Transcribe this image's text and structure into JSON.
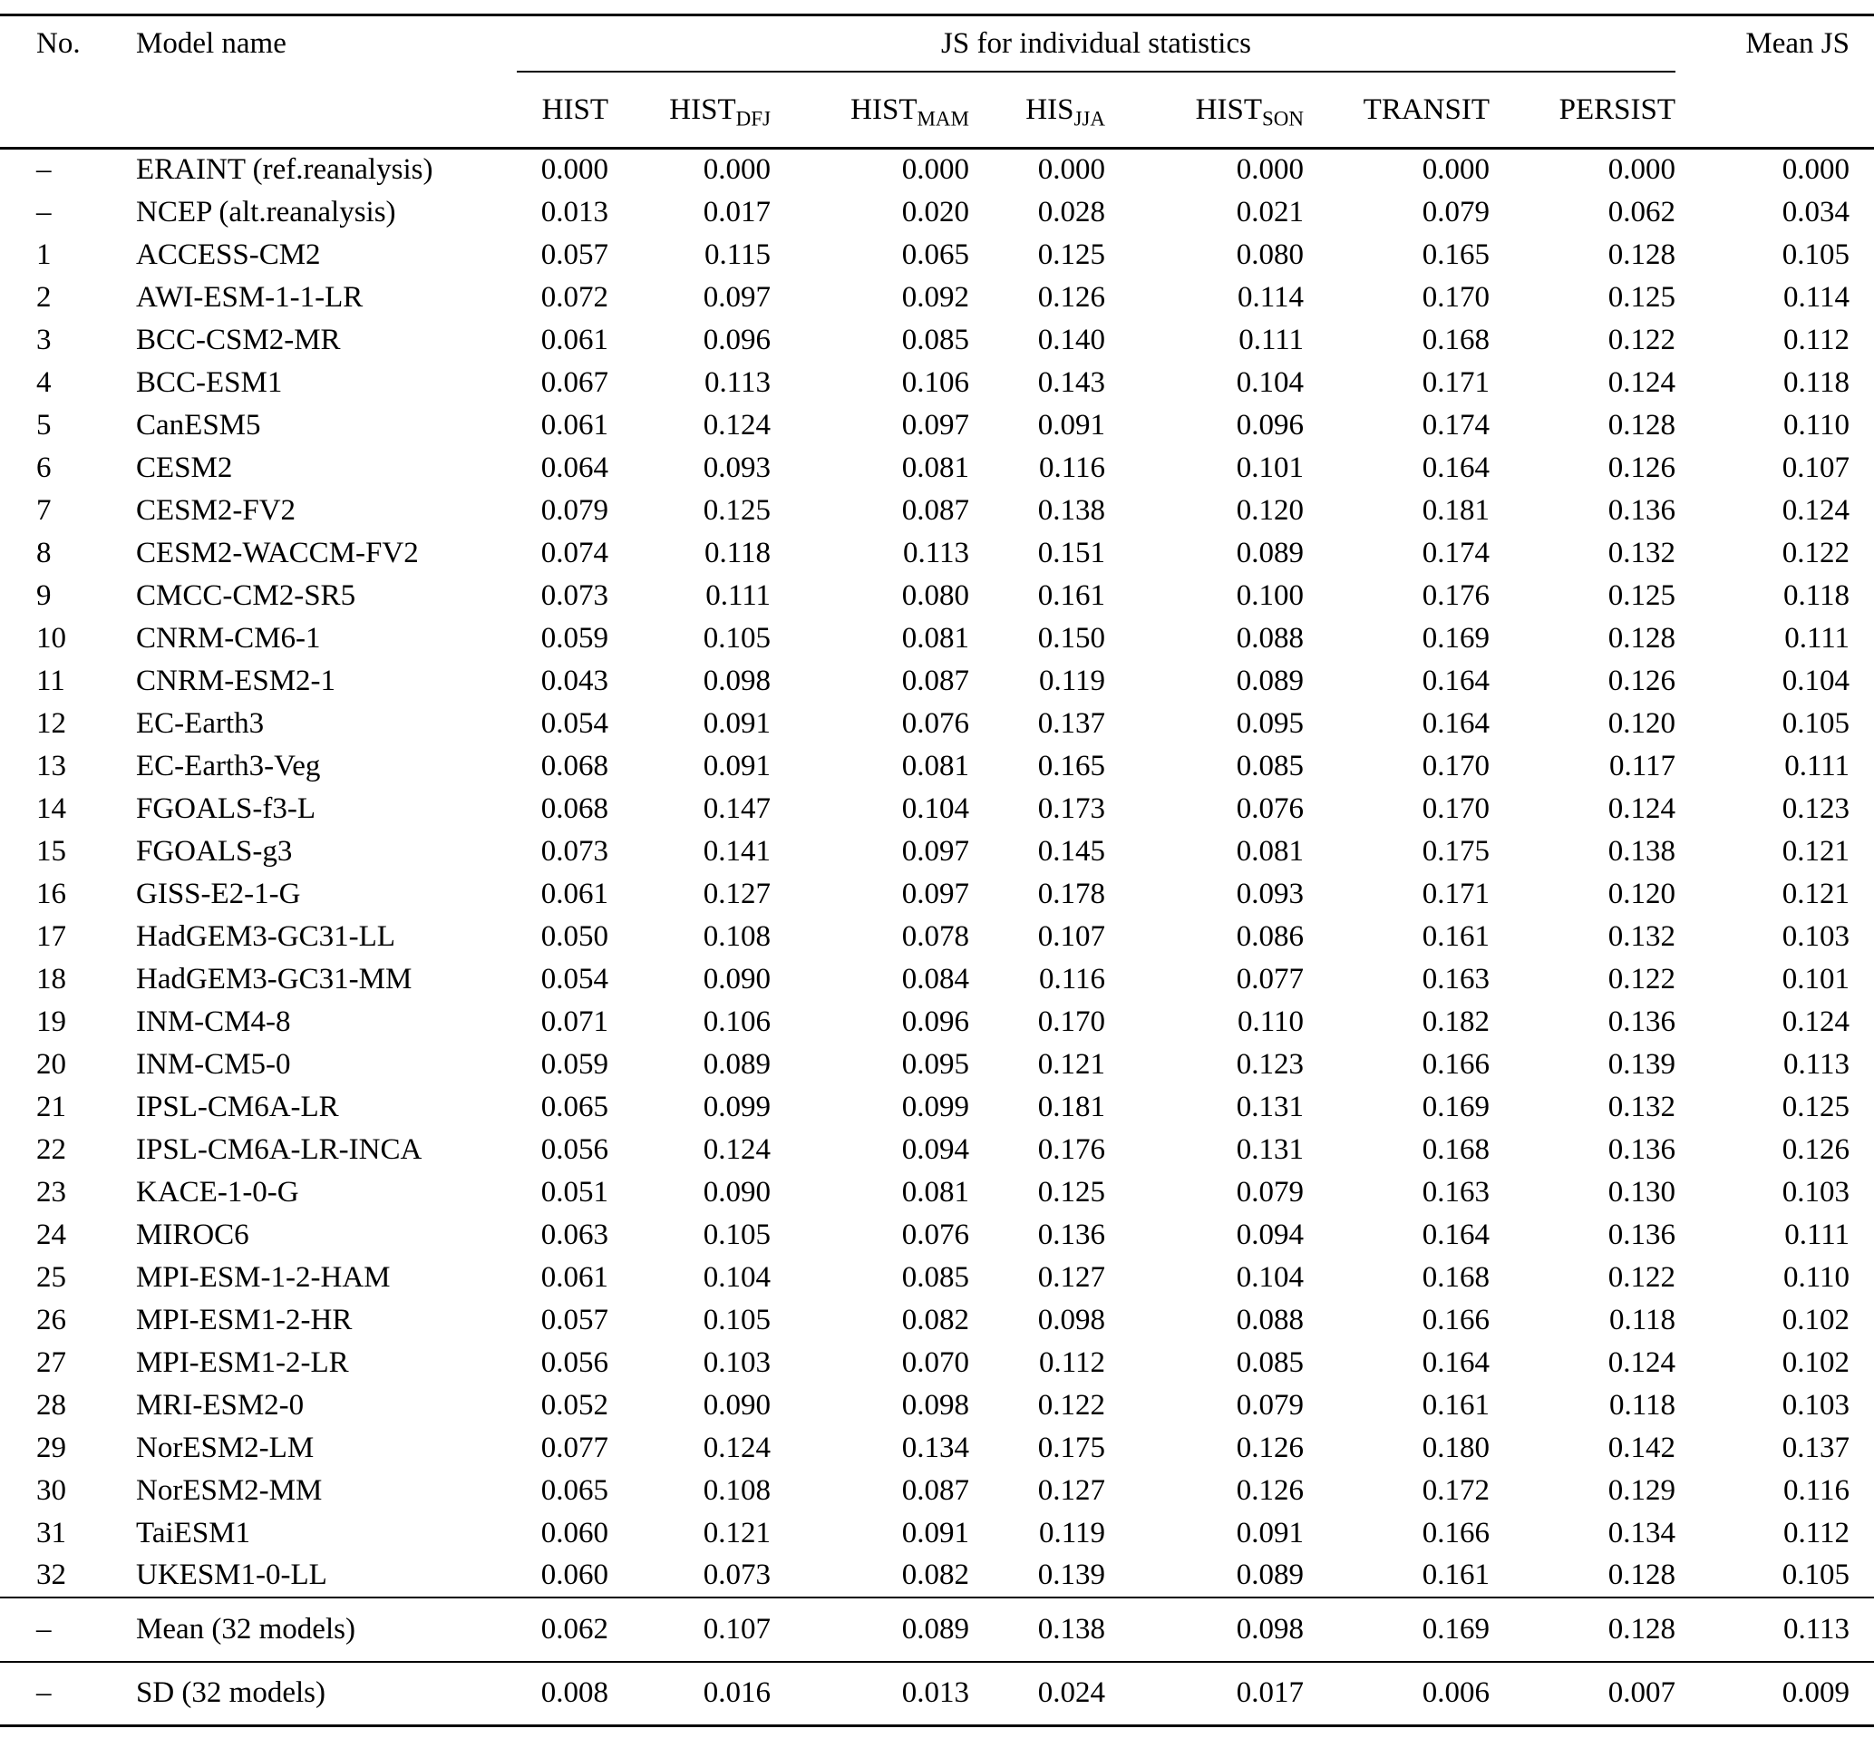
{
  "table": {
    "headers": {
      "no": "No.",
      "model": "Model name",
      "span": "JS for individual statistics",
      "mean": "Mean JS"
    },
    "stat_columns": [
      {
        "main": "HIST",
        "sub": ""
      },
      {
        "main": "HIST",
        "sub": "DFJ"
      },
      {
        "main": "HIST",
        "sub": "MAM"
      },
      {
        "main": "HIS",
        "sub": "JJA"
      },
      {
        "main": "HIST",
        "sub": "SON"
      },
      {
        "main": "TRANSIT",
        "sub": ""
      },
      {
        "main": "PERSIST",
        "sub": ""
      }
    ],
    "rows": [
      {
        "no": "–",
        "name": "ERAINT (ref.reanalysis)",
        "values": [
          "0.000",
          "0.000",
          "0.000",
          "0.000",
          "0.000",
          "0.000",
          "0.000",
          "0.000"
        ]
      },
      {
        "no": "–",
        "name": "NCEP (alt.reanalysis)",
        "values": [
          "0.013",
          "0.017",
          "0.020",
          "0.028",
          "0.021",
          "0.079",
          "0.062",
          "0.034"
        ]
      },
      {
        "no": "1",
        "name": "ACCESS-CM2",
        "values": [
          "0.057",
          "0.115",
          "0.065",
          "0.125",
          "0.080",
          "0.165",
          "0.128",
          "0.105"
        ]
      },
      {
        "no": "2",
        "name": "AWI-ESM-1-1-LR",
        "values": [
          "0.072",
          "0.097",
          "0.092",
          "0.126",
          "0.114",
          "0.170",
          "0.125",
          "0.114"
        ]
      },
      {
        "no": "3",
        "name": "BCC-CSM2-MR",
        "values": [
          "0.061",
          "0.096",
          "0.085",
          "0.140",
          "0.111",
          "0.168",
          "0.122",
          "0.112"
        ]
      },
      {
        "no": "4",
        "name": "BCC-ESM1",
        "values": [
          "0.067",
          "0.113",
          "0.106",
          "0.143",
          "0.104",
          "0.171",
          "0.124",
          "0.118"
        ]
      },
      {
        "no": "5",
        "name": "CanESM5",
        "values": [
          "0.061",
          "0.124",
          "0.097",
          "0.091",
          "0.096",
          "0.174",
          "0.128",
          "0.110"
        ]
      },
      {
        "no": "6",
        "name": "CESM2",
        "values": [
          "0.064",
          "0.093",
          "0.081",
          "0.116",
          "0.101",
          "0.164",
          "0.126",
          "0.107"
        ]
      },
      {
        "no": "7",
        "name": "CESM2-FV2",
        "values": [
          "0.079",
          "0.125",
          "0.087",
          "0.138",
          "0.120",
          "0.181",
          "0.136",
          "0.124"
        ]
      },
      {
        "no": "8",
        "name": "CESM2-WACCM-FV2",
        "values": [
          "0.074",
          "0.118",
          "0.113",
          "0.151",
          "0.089",
          "0.174",
          "0.132",
          "0.122"
        ]
      },
      {
        "no": "9",
        "name": "CMCC-CM2-SR5",
        "values": [
          "0.073",
          "0.111",
          "0.080",
          "0.161",
          "0.100",
          "0.176",
          "0.125",
          "0.118"
        ]
      },
      {
        "no": "10",
        "name": "CNRM-CM6-1",
        "values": [
          "0.059",
          "0.105",
          "0.081",
          "0.150",
          "0.088",
          "0.169",
          "0.128",
          "0.111"
        ]
      },
      {
        "no": "11",
        "name": "CNRM-ESM2-1",
        "values": [
          "0.043",
          "0.098",
          "0.087",
          "0.119",
          "0.089",
          "0.164",
          "0.126",
          "0.104"
        ]
      },
      {
        "no": "12",
        "name": "EC-Earth3",
        "values": [
          "0.054",
          "0.091",
          "0.076",
          "0.137",
          "0.095",
          "0.164",
          "0.120",
          "0.105"
        ]
      },
      {
        "no": "13",
        "name": "EC-Earth3-Veg",
        "values": [
          "0.068",
          "0.091",
          "0.081",
          "0.165",
          "0.085",
          "0.170",
          "0.117",
          "0.111"
        ]
      },
      {
        "no": "14",
        "name": "FGOALS-f3-L",
        "values": [
          "0.068",
          "0.147",
          "0.104",
          "0.173",
          "0.076",
          "0.170",
          "0.124",
          "0.123"
        ]
      },
      {
        "no": "15",
        "name": "FGOALS-g3",
        "values": [
          "0.073",
          "0.141",
          "0.097",
          "0.145",
          "0.081",
          "0.175",
          "0.138",
          "0.121"
        ]
      },
      {
        "no": "16",
        "name": "GISS-E2-1-G",
        "values": [
          "0.061",
          "0.127",
          "0.097",
          "0.178",
          "0.093",
          "0.171",
          "0.120",
          "0.121"
        ]
      },
      {
        "no": "17",
        "name": "HadGEM3-GC31-LL",
        "values": [
          "0.050",
          "0.108",
          "0.078",
          "0.107",
          "0.086",
          "0.161",
          "0.132",
          "0.103"
        ]
      },
      {
        "no": "18",
        "name": "HadGEM3-GC31-MM",
        "values": [
          "0.054",
          "0.090",
          "0.084",
          "0.116",
          "0.077",
          "0.163",
          "0.122",
          "0.101"
        ]
      },
      {
        "no": "19",
        "name": "INM-CM4-8",
        "values": [
          "0.071",
          "0.106",
          "0.096",
          "0.170",
          "0.110",
          "0.182",
          "0.136",
          "0.124"
        ]
      },
      {
        "no": "20",
        "name": "INM-CM5-0",
        "values": [
          "0.059",
          "0.089",
          "0.095",
          "0.121",
          "0.123",
          "0.166",
          "0.139",
          "0.113"
        ]
      },
      {
        "no": "21",
        "name": "IPSL-CM6A-LR",
        "values": [
          "0.065",
          "0.099",
          "0.099",
          "0.181",
          "0.131",
          "0.169",
          "0.132",
          "0.125"
        ]
      },
      {
        "no": "22",
        "name": "IPSL-CM6A-LR-INCA",
        "values": [
          "0.056",
          "0.124",
          "0.094",
          "0.176",
          "0.131",
          "0.168",
          "0.136",
          "0.126"
        ]
      },
      {
        "no": "23",
        "name": "KACE-1-0-G",
        "values": [
          "0.051",
          "0.090",
          "0.081",
          "0.125",
          "0.079",
          "0.163",
          "0.130",
          "0.103"
        ]
      },
      {
        "no": "24",
        "name": "MIROC6",
        "values": [
          "0.063",
          "0.105",
          "0.076",
          "0.136",
          "0.094",
          "0.164",
          "0.136",
          "0.111"
        ]
      },
      {
        "no": "25",
        "name": "MPI-ESM-1-2-HAM",
        "values": [
          "0.061",
          "0.104",
          "0.085",
          "0.127",
          "0.104",
          "0.168",
          "0.122",
          "0.110"
        ]
      },
      {
        "no": "26",
        "name": "MPI-ESM1-2-HR",
        "values": [
          "0.057",
          "0.105",
          "0.082",
          "0.098",
          "0.088",
          "0.166",
          "0.118",
          "0.102"
        ]
      },
      {
        "no": "27",
        "name": "MPI-ESM1-2-LR",
        "values": [
          "0.056",
          "0.103",
          "0.070",
          "0.112",
          "0.085",
          "0.164",
          "0.124",
          "0.102"
        ]
      },
      {
        "no": "28",
        "name": "MRI-ESM2-0",
        "values": [
          "0.052",
          "0.090",
          "0.098",
          "0.122",
          "0.079",
          "0.161",
          "0.118",
          "0.103"
        ]
      },
      {
        "no": "29",
        "name": "NorESM2-LM",
        "values": [
          "0.077",
          "0.124",
          "0.134",
          "0.175",
          "0.126",
          "0.180",
          "0.142",
          "0.137"
        ]
      },
      {
        "no": "30",
        "name": "NorESM2-MM",
        "values": [
          "0.065",
          "0.108",
          "0.087",
          "0.127",
          "0.126",
          "0.172",
          "0.129",
          "0.116"
        ]
      },
      {
        "no": "31",
        "name": "TaiESM1",
        "values": [
          "0.060",
          "0.121",
          "0.091",
          "0.119",
          "0.091",
          "0.166",
          "0.134",
          "0.112"
        ]
      },
      {
        "no": "32",
        "name": "UKESM1-0-LL",
        "values": [
          "0.060",
          "0.073",
          "0.082",
          "0.139",
          "0.089",
          "0.161",
          "0.128",
          "0.105"
        ]
      }
    ],
    "mean_row": {
      "no": "–",
      "name": "Mean (32 models)",
      "values": [
        "0.062",
        "0.107",
        "0.089",
        "0.138",
        "0.098",
        "0.169",
        "0.128",
        "0.113"
      ]
    },
    "sd_row": {
      "no": "–",
      "name": "SD (32 models)",
      "values": [
        "0.008",
        "0.016",
        "0.013",
        "0.024",
        "0.017",
        "0.006",
        "0.007",
        "0.009"
      ]
    }
  }
}
